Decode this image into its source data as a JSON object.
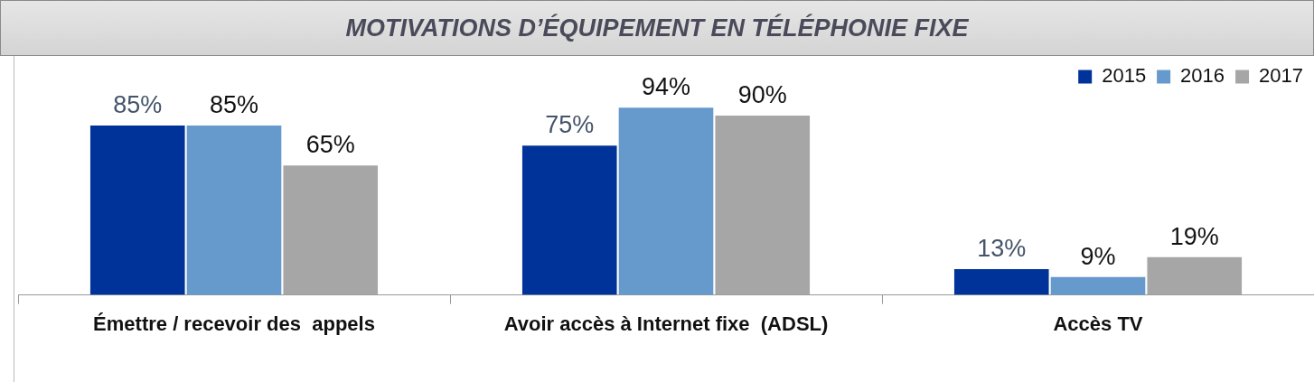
{
  "chart_data": {
    "type": "bar",
    "title": "MOTIVATIONS D’ÉQUIPEMENT EN TÉLÉPHONIE FIXE",
    "categories": [
      "Émettre / recevoir des  appels",
      "Avoir accès à Internet fixe  (ADSL)",
      "Accès TV"
    ],
    "series": [
      {
        "name": "2015",
        "color": "#003399",
        "values": [
          85,
          75,
          13
        ],
        "value_labels": [
          "85%",
          "75%",
          "13%"
        ]
      },
      {
        "name": "2016",
        "color": "#6699cc",
        "values": [
          85,
          94,
          9
        ],
        "value_labels": [
          "85%",
          "94%",
          "9%"
        ]
      },
      {
        "name": "2017",
        "color": "#a6a6a6",
        "values": [
          65,
          90,
          19
        ],
        "value_labels": [
          "65%",
          "90%",
          "19%"
        ]
      }
    ],
    "legend": "top right"
  }
}
